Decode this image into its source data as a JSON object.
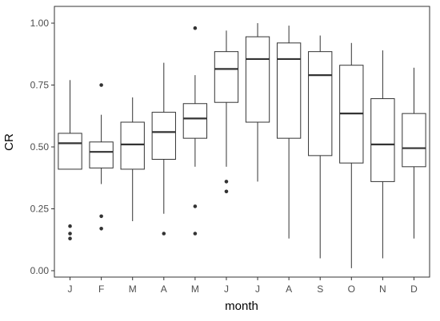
{
  "chart_data": {
    "type": "boxplot",
    "xlabel": "month",
    "ylabel": "CR",
    "ylim": [
      0,
      1
    ],
    "grid": false,
    "y_ticks": [
      {
        "value": 0.0,
        "label": "0.00"
      },
      {
        "value": 0.25,
        "label": "0.25"
      },
      {
        "value": 0.5,
        "label": "0.50"
      },
      {
        "value": 0.75,
        "label": "0.75"
      },
      {
        "value": 1.0,
        "label": "1.00"
      }
    ],
    "categories": [
      "J",
      "F",
      "M",
      "A",
      "M",
      "J",
      "J",
      "A",
      "S",
      "O",
      "N",
      "D"
    ],
    "boxes": [
      {
        "low": 0.41,
        "q1": 0.41,
        "median": 0.515,
        "q3": 0.555,
        "high": 0.77,
        "outliers": [
          0.18,
          0.15,
          0.13
        ]
      },
      {
        "low": 0.35,
        "q1": 0.415,
        "median": 0.48,
        "q3": 0.52,
        "high": 0.63,
        "outliers": [
          0.75,
          0.22,
          0.17
        ]
      },
      {
        "low": 0.2,
        "q1": 0.41,
        "median": 0.51,
        "q3": 0.6,
        "high": 0.7,
        "outliers": []
      },
      {
        "low": 0.23,
        "q1": 0.45,
        "median": 0.56,
        "q3": 0.64,
        "high": 0.84,
        "outliers": [
          0.15
        ]
      },
      {
        "low": 0.42,
        "q1": 0.535,
        "median": 0.615,
        "q3": 0.675,
        "high": 0.79,
        "outliers": [
          0.98,
          0.26,
          0.15
        ]
      },
      {
        "low": 0.42,
        "q1": 0.68,
        "median": 0.815,
        "q3": 0.885,
        "high": 0.97,
        "outliers": [
          0.36,
          0.32
        ]
      },
      {
        "low": 0.36,
        "q1": 0.6,
        "median": 0.855,
        "q3": 0.945,
        "high": 1.0,
        "outliers": []
      },
      {
        "low": 0.13,
        "q1": 0.535,
        "median": 0.855,
        "q3": 0.92,
        "high": 0.99,
        "outliers": []
      },
      {
        "low": 0.05,
        "q1": 0.465,
        "median": 0.79,
        "q3": 0.885,
        "high": 0.95,
        "outliers": []
      },
      {
        "low": 0.01,
        "q1": 0.435,
        "median": 0.635,
        "q3": 0.83,
        "high": 0.92,
        "outliers": []
      },
      {
        "low": 0.05,
        "q1": 0.36,
        "median": 0.51,
        "q3": 0.695,
        "high": 0.89,
        "outliers": []
      },
      {
        "low": 0.13,
        "q1": 0.42,
        "median": 0.495,
        "q3": 0.635,
        "high": 0.82,
        "outliers": []
      }
    ]
  }
}
